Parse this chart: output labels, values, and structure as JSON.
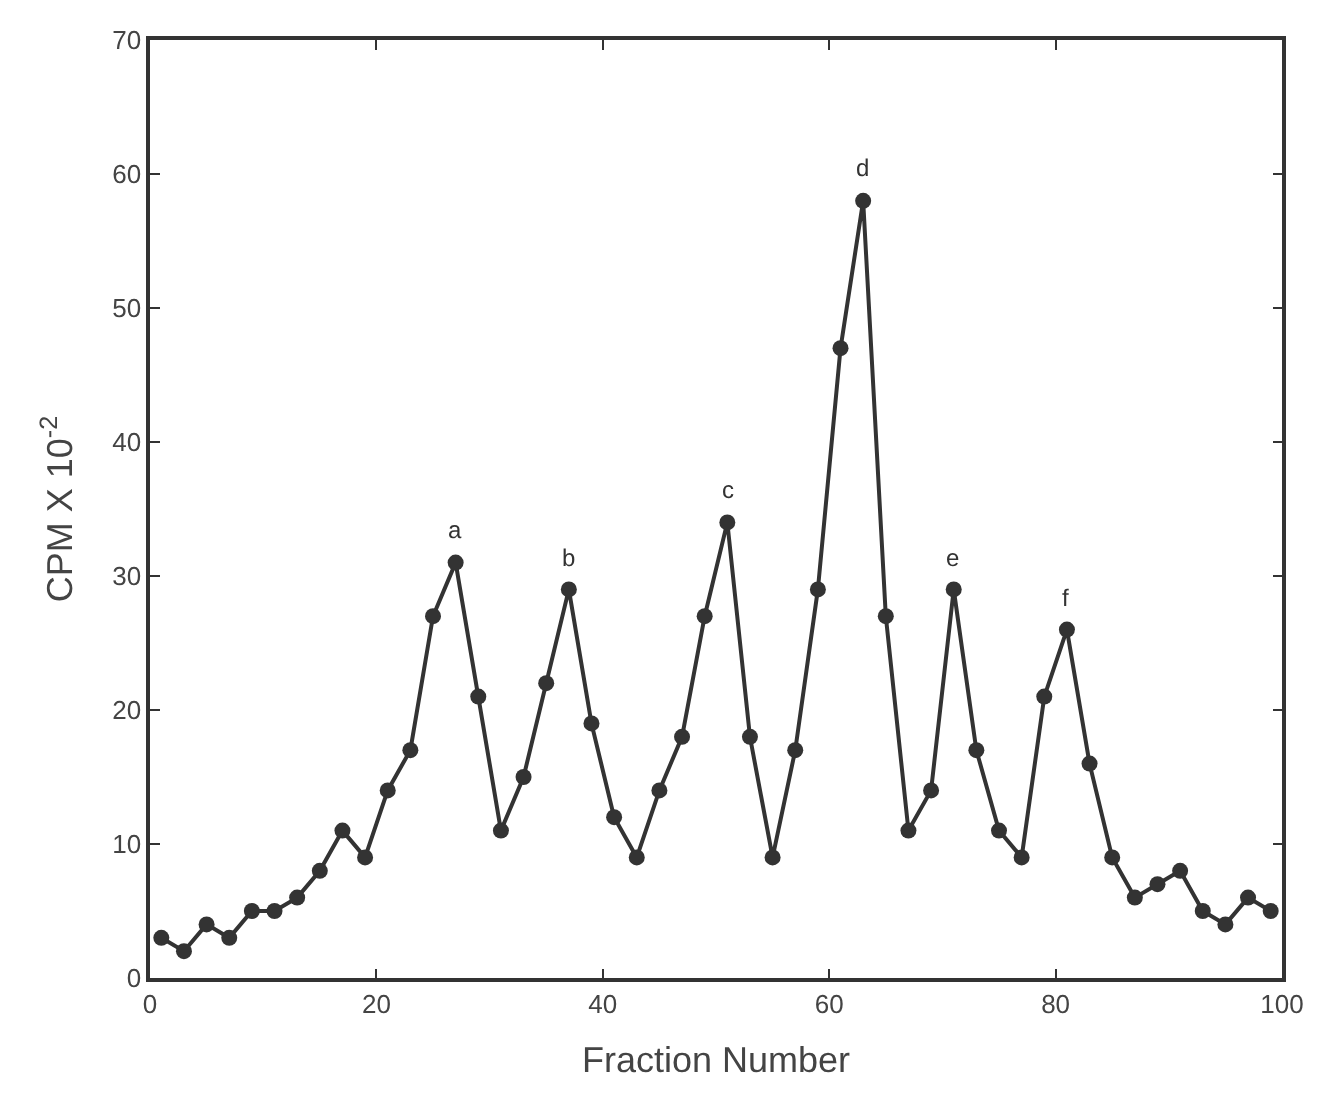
{
  "chart_data": {
    "type": "line",
    "xlabel": "Fraction Number",
    "ylabel": "CPM X 10$^{-2}$",
    "x": [
      1,
      3,
      5,
      7,
      9,
      11,
      13,
      15,
      17,
      19,
      21,
      23,
      25,
      27,
      29,
      31,
      33,
      35,
      37,
      39,
      41,
      43,
      45,
      47,
      49,
      51,
      53,
      55,
      57,
      59,
      61,
      63,
      65,
      67,
      69,
      71,
      73,
      75,
      77,
      79,
      81,
      83,
      85,
      87,
      89,
      91,
      93,
      95,
      97,
      99
    ],
    "series": [
      {
        "color": "#333333",
        "values": [
          3,
          2,
          4,
          3,
          5,
          5,
          6,
          8,
          11,
          9,
          14,
          17,
          27,
          31,
          21,
          11,
          15,
          22,
          29,
          19,
          12,
          9,
          14,
          18,
          27,
          34,
          18,
          9,
          17,
          29,
          47,
          58,
          27,
          11,
          14,
          29,
          17,
          11,
          9,
          21,
          26,
          16,
          9,
          6,
          7,
          8,
          5,
          4,
          6,
          5
        ]
      }
    ],
    "xlim": [
      0,
      100
    ],
    "ylim": [
      0,
      70
    ],
    "xticks": [
      0,
      20,
      40,
      60,
      80,
      100
    ],
    "yticks": [
      0,
      10,
      20,
      30,
      40,
      50,
      60,
      70
    ],
    "marker": "circle",
    "line_style": "solid",
    "annotations": [
      {
        "text": "a",
        "x": 27,
        "y": 31
      },
      {
        "text": "b",
        "x": 37,
        "y": 29
      },
      {
        "text": "c",
        "x": 51,
        "y": 34
      },
      {
        "text": "d",
        "x": 63,
        "y": 58
      },
      {
        "text": "e",
        "x": 71,
        "y": 29
      },
      {
        "text": "f",
        "x": 81,
        "y": 26
      }
    ]
  }
}
